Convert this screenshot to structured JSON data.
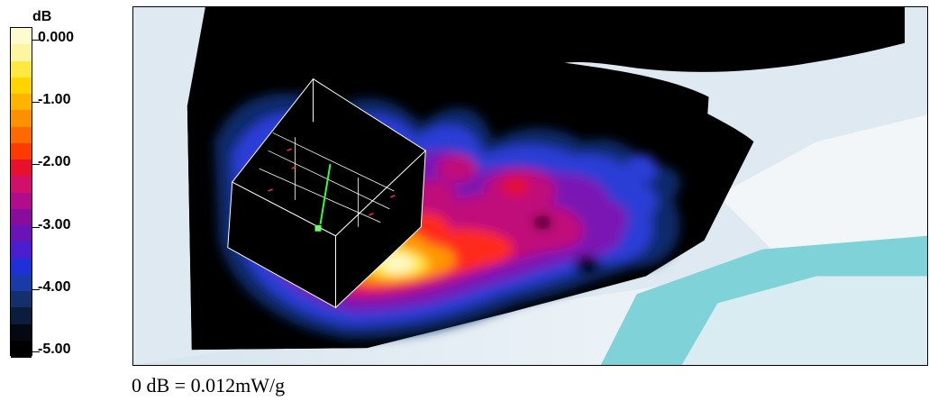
{
  "legend": {
    "unit": "dB",
    "ticks": [
      {
        "value": 0.0,
        "label": "0.000"
      },
      {
        "value": -1.0,
        "label": "-1.00"
      },
      {
        "value": -2.0,
        "label": "-2.00"
      },
      {
        "value": -3.0,
        "label": "-3.00"
      },
      {
        "value": -4.0,
        "label": "-4.00"
      },
      {
        "value": -5.0,
        "label": "-5.00"
      }
    ],
    "colors": [
      "#fffbd0",
      "#fff4a0",
      "#ffe840",
      "#ffd400",
      "#ffb400",
      "#ff9000",
      "#ff6a00",
      "#ff3a00",
      "#e8102c",
      "#d0106a",
      "#b00c8c",
      "#8a0c9c",
      "#6a14b8",
      "#4a1ed0",
      "#2030d8",
      "#1a3aa8",
      "#14306c",
      "#0c1c3c",
      "#040810",
      "#000000"
    ]
  },
  "chart_data": {
    "type": "heatmap",
    "description_free": true,
    "colorbar_range": [
      -5.0,
      0.0
    ],
    "colorbar_unit": "dB",
    "reference_note": "0 dB = 0.012mW/g"
  },
  "footnote": "0 dB = 0.012mW/g"
}
